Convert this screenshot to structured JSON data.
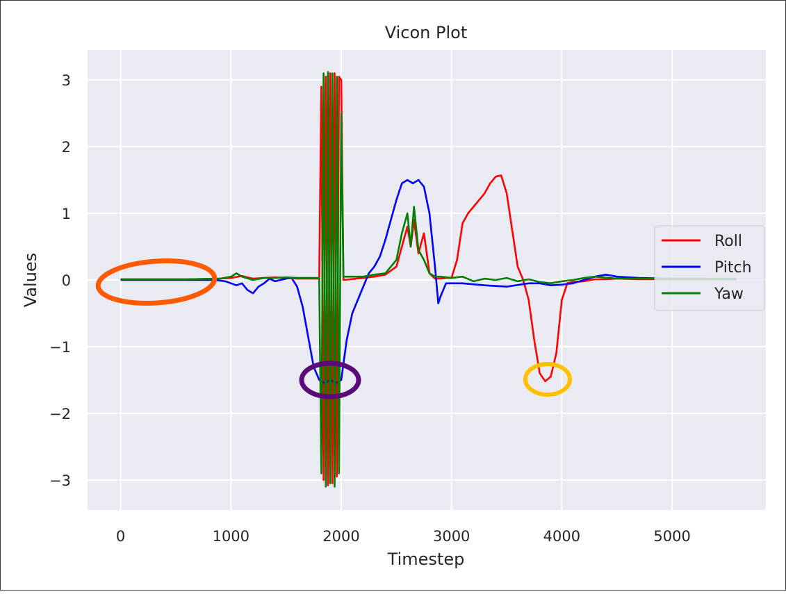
{
  "chart_data": {
    "type": "line",
    "title": "Vicon Plot",
    "xlabel": "Timestep",
    "ylabel": "Values",
    "xlim": [
      -300,
      5850
    ],
    "ylim": [
      -3.45,
      3.45
    ],
    "xticks": [
      0,
      1000,
      2000,
      3000,
      4000,
      5000
    ],
    "xtick_labels": [
      "0",
      "1000",
      "2000",
      "3000",
      "4000",
      "5000"
    ],
    "yticks": [
      3,
      2,
      1,
      0,
      -1,
      -2,
      -3
    ],
    "ytick_labels": [
      "3",
      "2",
      "1",
      "0",
      "−1",
      "−2",
      "−3"
    ],
    "grid": true,
    "legend_position": "center-right",
    "background": "#eaeaf2",
    "series": [
      {
        "name": "Roll",
        "color": "#ff0000",
        "x": [
          0,
          300,
          600,
          900,
          1000,
          1100,
          1200,
          1300,
          1400,
          1500,
          1600,
          1700,
          1800,
          1820,
          1840,
          1860,
          1880,
          1900,
          1920,
          1940,
          1960,
          1980,
          2000,
          2020,
          2200,
          2300,
          2400,
          2500,
          2550,
          2600,
          2630,
          2660,
          2700,
          2750,
          2800,
          2850,
          2900,
          2950,
          3000,
          3050,
          3100,
          3150,
          3200,
          3250,
          3300,
          3350,
          3400,
          3450,
          3500,
          3550,
          3600,
          3650,
          3700,
          3750,
          3800,
          3850,
          3900,
          3950,
          4000,
          4050,
          4100,
          4200,
          4300,
          4400,
          4500,
          4700,
          5000,
          5300,
          5580
        ],
        "y": [
          0.01,
          0.01,
          0.01,
          0.02,
          0.03,
          0.06,
          0.02,
          0.03,
          0.04,
          0.03,
          0.02,
          0.02,
          0.02,
          2.9,
          -3.0,
          3.05,
          -3.08,
          3.1,
          -3.05,
          3.1,
          -2.95,
          3.05,
          3.0,
          0.0,
          0.03,
          0.05,
          0.08,
          0.2,
          0.5,
          0.8,
          0.5,
          0.9,
          0.4,
          0.7,
          0.1,
          0.02,
          0.02,
          0.03,
          0.03,
          0.3,
          0.85,
          1.0,
          1.1,
          1.2,
          1.3,
          1.45,
          1.55,
          1.57,
          1.3,
          0.75,
          0.2,
          0.0,
          -0.3,
          -0.9,
          -1.4,
          -1.52,
          -1.45,
          -1.1,
          -0.3,
          -0.05,
          -0.03,
          -0.02,
          0.01,
          0.01,
          0.02,
          0.01,
          0.01,
          0.01,
          0.01
        ]
      },
      {
        "name": "Pitch",
        "color": "#0000ff",
        "x": [
          0,
          300,
          600,
          850,
          950,
          1000,
          1050,
          1100,
          1150,
          1200,
          1250,
          1300,
          1350,
          1400,
          1500,
          1550,
          1600,
          1650,
          1700,
          1750,
          1800,
          1850,
          1900,
          1950,
          2000,
          2050,
          2100,
          2150,
          2200,
          2250,
          2300,
          2350,
          2400,
          2450,
          2500,
          2550,
          2600,
          2650,
          2700,
          2750,
          2800,
          2850,
          2880,
          2900,
          2950,
          3000,
          3100,
          3300,
          3500,
          3700,
          3800,
          3900,
          4000,
          4100,
          4200,
          4300,
          4400,
          4500,
          4700,
          5000,
          5300,
          5580
        ],
        "y": [
          0.0,
          0.0,
          0.0,
          0.0,
          -0.02,
          -0.05,
          -0.08,
          -0.05,
          -0.15,
          -0.2,
          -0.1,
          -0.05,
          0.02,
          -0.02,
          0.02,
          0.03,
          -0.1,
          -0.4,
          -0.85,
          -1.3,
          -1.5,
          -1.55,
          -1.5,
          -1.55,
          -1.5,
          -0.9,
          -0.5,
          -0.3,
          -0.1,
          0.1,
          0.2,
          0.35,
          0.6,
          0.9,
          1.2,
          1.45,
          1.5,
          1.45,
          1.5,
          1.4,
          1.0,
          0.2,
          -0.35,
          -0.25,
          -0.05,
          -0.05,
          -0.05,
          -0.08,
          -0.1,
          -0.05,
          -0.05,
          -0.08,
          -0.07,
          -0.05,
          0.0,
          0.05,
          0.08,
          0.05,
          0.03,
          0.02,
          0.02,
          0.01
        ]
      },
      {
        "name": "Yaw",
        "color": "#008000",
        "x": [
          0,
          300,
          600,
          900,
          1000,
          1050,
          1100,
          1200,
          1300,
          1400,
          1500,
          1600,
          1700,
          1800,
          1820,
          1840,
          1860,
          1880,
          1900,
          1920,
          1940,
          1960,
          1980,
          2000,
          2020,
          2200,
          2300,
          2400,
          2500,
          2550,
          2600,
          2630,
          2660,
          2700,
          2750,
          2800,
          2850,
          2900,
          3000,
          3100,
          3200,
          3300,
          3400,
          3500,
          3600,
          3700,
          3800,
          3900,
          4000,
          4100,
          4200,
          4300,
          4500,
          4700,
          5000,
          5300,
          5580
        ],
        "y": [
          0.01,
          0.01,
          0.01,
          0.02,
          0.05,
          0.1,
          0.05,
          0.0,
          0.03,
          0.03,
          0.04,
          0.03,
          0.03,
          0.03,
          -2.9,
          3.1,
          -3.1,
          3.12,
          -3.05,
          3.1,
          -3.1,
          3.05,
          -2.9,
          2.5,
          0.05,
          0.05,
          0.08,
          0.1,
          0.3,
          0.7,
          1.0,
          0.5,
          1.1,
          0.45,
          0.3,
          0.1,
          0.05,
          0.05,
          0.03,
          0.05,
          -0.02,
          0.02,
          0.0,
          0.03,
          -0.02,
          0.01,
          -0.03,
          -0.05,
          -0.02,
          0.0,
          0.03,
          0.05,
          0.02,
          0.02,
          0.02,
          0.02,
          0.02
        ]
      }
    ]
  }
}
